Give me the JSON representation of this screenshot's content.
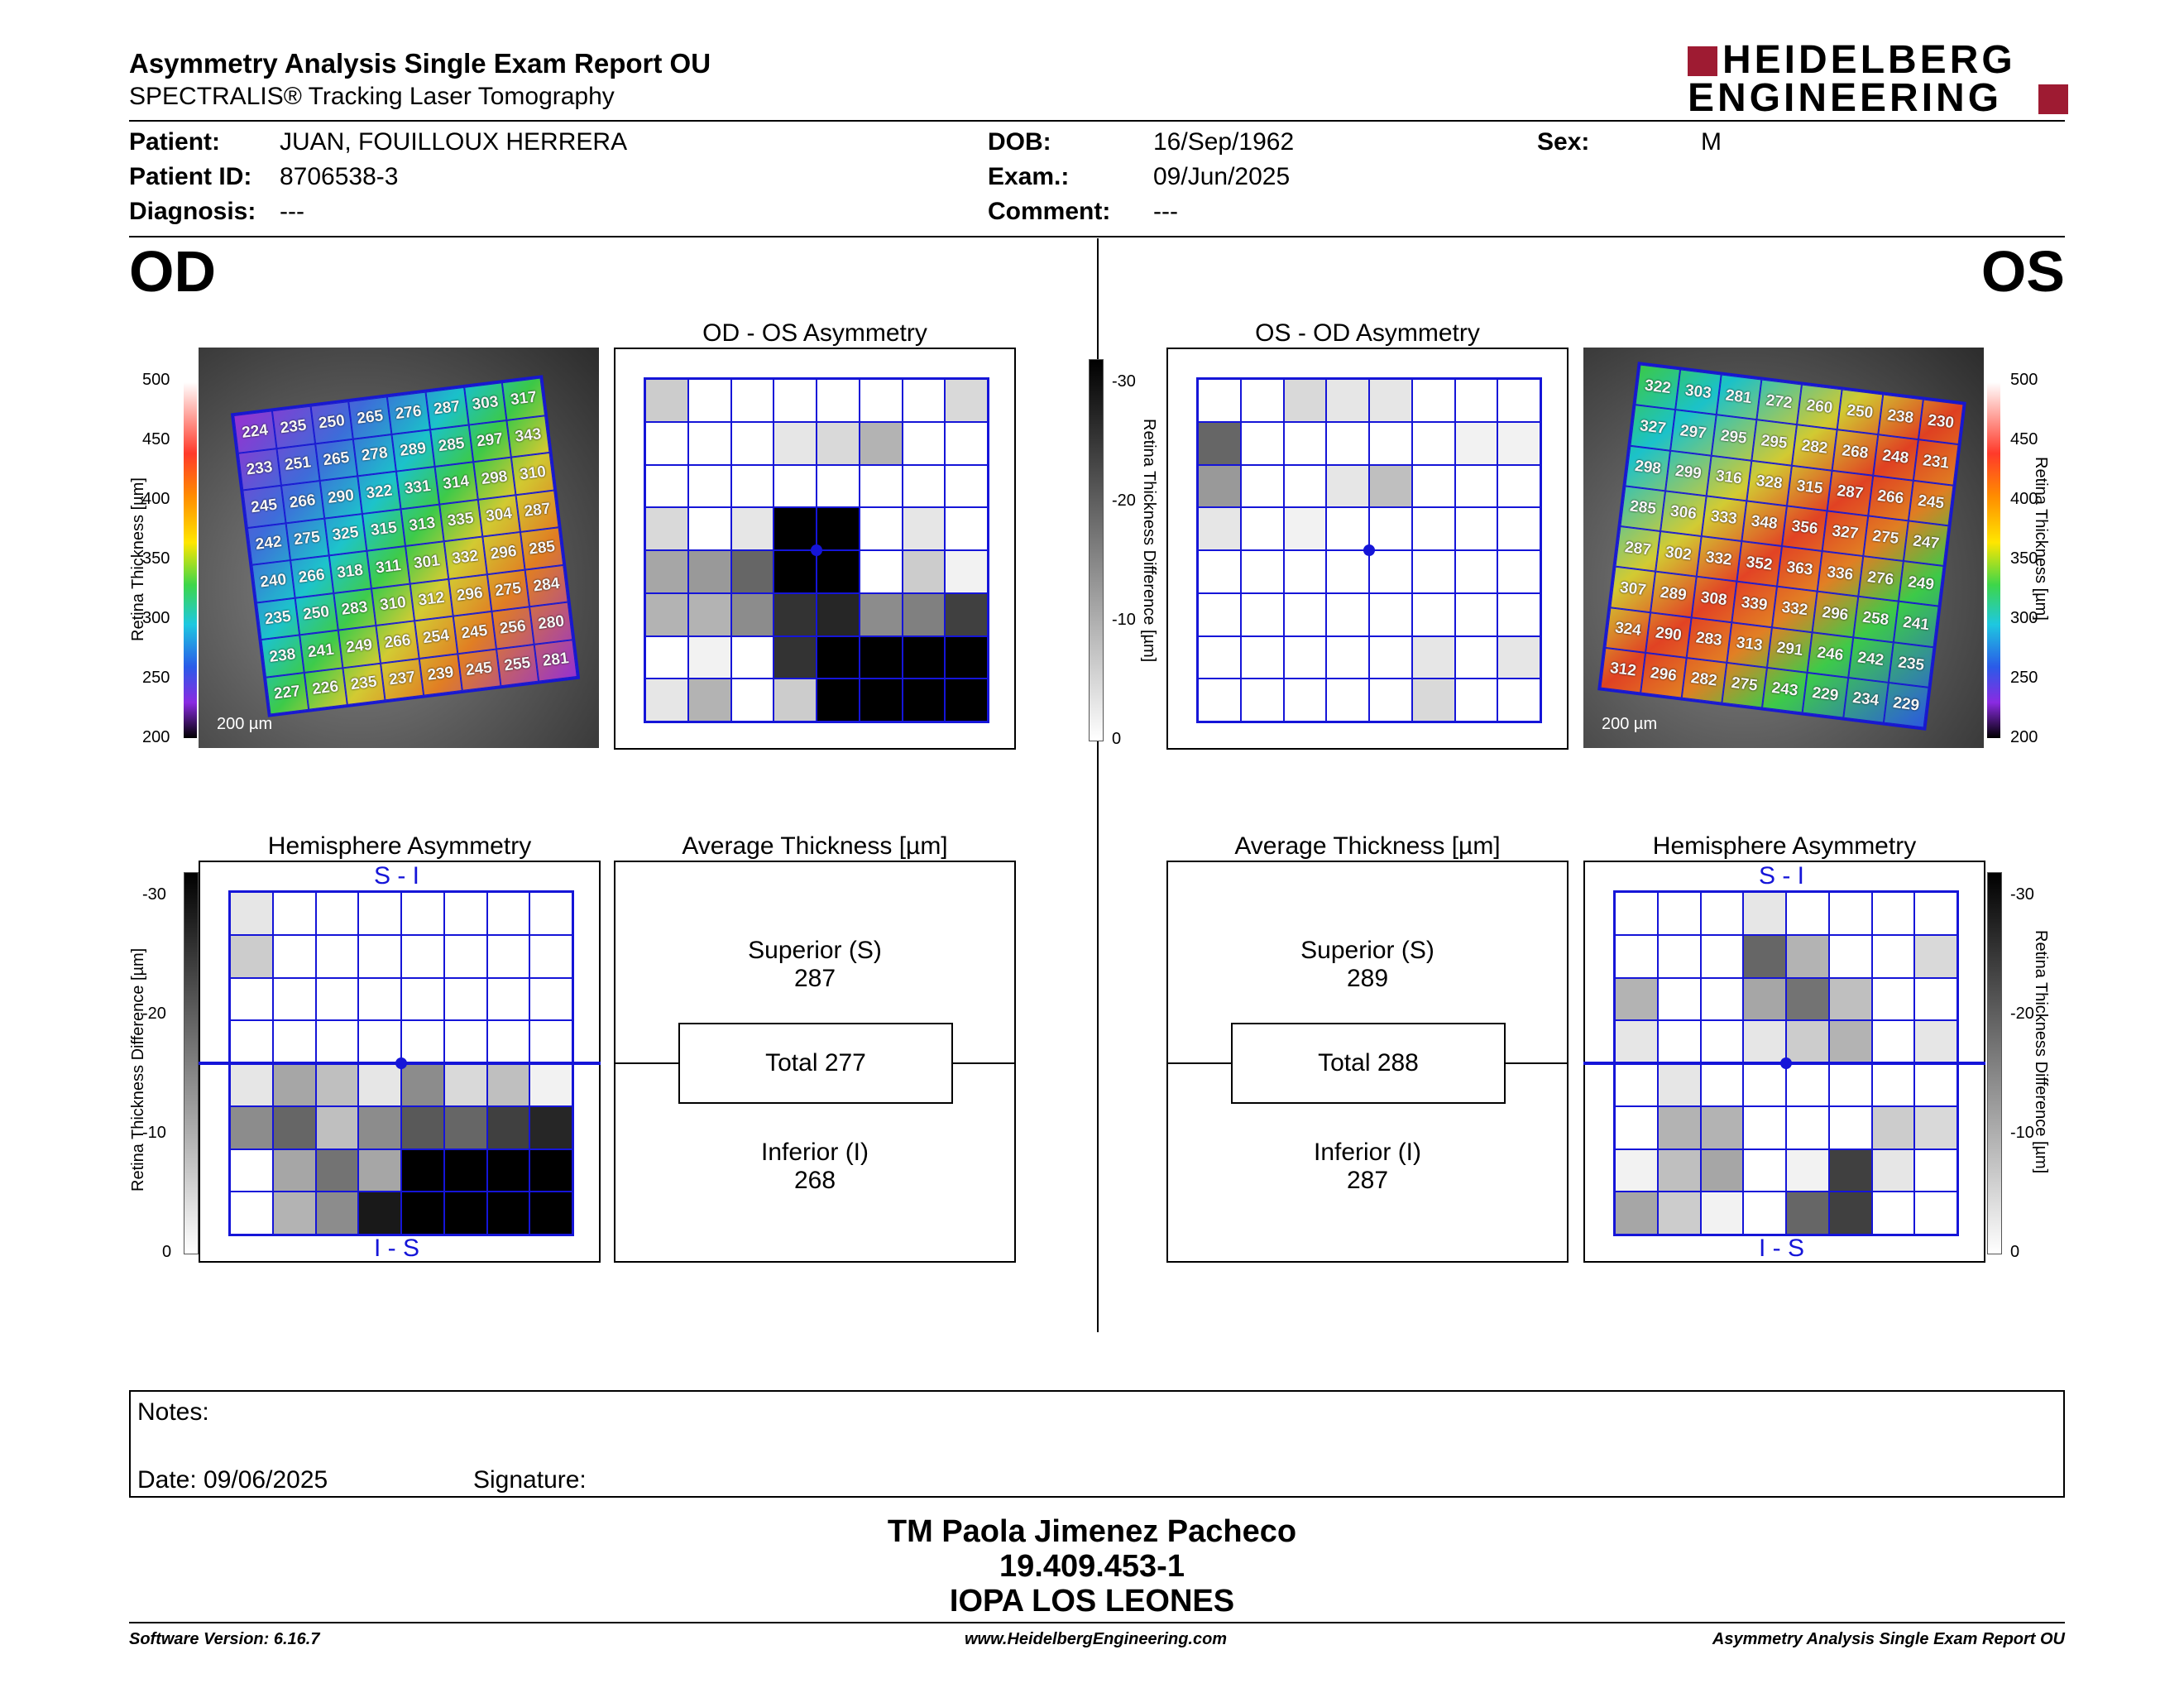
{
  "header": {
    "title": "Asymmetry Analysis Single Exam Report OU",
    "subtitle": "SPECTRALIS® Tracking Laser Tomography",
    "logo_line1": "HEIDELBERG",
    "logo_line2": "ENGINEERING"
  },
  "patient": {
    "patient_label": "Patient:",
    "patient_value": "JUAN, FOUILLOUX HERRERA",
    "id_label": "Patient ID:",
    "id_value": "8706538-3",
    "diag_label": "Diagnosis:",
    "diag_value": "---",
    "dob_label": "DOB:",
    "dob_value": "16/Sep/1962",
    "exam_label": "Exam.:",
    "exam_value": "09/Jun/2025",
    "comment_label": "Comment:",
    "comment_value": "---",
    "sex_label": "Sex:",
    "sex_value": "M"
  },
  "eyes": {
    "od": "OD",
    "os": "OS"
  },
  "titles": {
    "od_os": "OD - OS Asymmetry",
    "os_od": "OS - OD Asymmetry",
    "hemi": "Hemisphere Asymmetry",
    "avg": "Average Thickness [µm]"
  },
  "scales": {
    "thick_ticks": [
      "500",
      "450",
      "400",
      "350",
      "300",
      "250",
      "200"
    ],
    "thick_label": "Retina Thickness [µm]",
    "diff_ticks": [
      "-30",
      "-20",
      "-10",
      "0"
    ],
    "diff_label": "Retina Thickness Difference [µm]",
    "scalebar": "200 µm"
  },
  "hemi_labels": {
    "top": "S - I",
    "bottom": "I - S"
  },
  "od_thickness": [
    [
      "224",
      "235",
      "250",
      "265",
      "276",
      "287",
      "303",
      "317"
    ],
    [
      "233",
      "251",
      "265",
      "278",
      "289",
      "285",
      "297",
      "343"
    ],
    [
      "245",
      "266",
      "290",
      "322",
      "331",
      "314",
      "298",
      "310"
    ],
    [
      "242",
      "275",
      "325",
      "315",
      "313",
      "335",
      "304",
      "287"
    ],
    [
      "240",
      "266",
      "318",
      "311",
      "301",
      "332",
      "296",
      "285"
    ],
    [
      "235",
      "250",
      "283",
      "310",
      "312",
      "296",
      "275",
      "284"
    ],
    [
      "238",
      "241",
      "249",
      "266",
      "254",
      "245",
      "256",
      "280"
    ],
    [
      "227",
      "226",
      "235",
      "237",
      "239",
      "245",
      "255",
      "281"
    ]
  ],
  "os_thickness": [
    [
      "322",
      "303",
      "281",
      "272",
      "260",
      "250",
      "238",
      "230"
    ],
    [
      "327",
      "297",
      "295",
      "295",
      "282",
      "268",
      "248",
      "231"
    ],
    [
      "298",
      "299",
      "316",
      "328",
      "315",
      "287",
      "266",
      "245"
    ],
    [
      "285",
      "306",
      "333",
      "348",
      "356",
      "327",
      "275",
      "247"
    ],
    [
      "287",
      "302",
      "332",
      "352",
      "363",
      "336",
      "276",
      "249"
    ],
    [
      "307",
      "289",
      "308",
      "339",
      "332",
      "296",
      "258",
      "241"
    ],
    [
      "324",
      "290",
      "283",
      "313",
      "291",
      "246",
      "242",
      "235"
    ],
    [
      "312",
      "296",
      "282",
      "275",
      "243",
      "229",
      "234",
      "229"
    ]
  ],
  "od_os_asym": [
    [
      0.2,
      0,
      0,
      0,
      0,
      0,
      0,
      0.15
    ],
    [
      0,
      0,
      0,
      0.1,
      0.15,
      0.3,
      0,
      0
    ],
    [
      0,
      0,
      0,
      0,
      0,
      0,
      0,
      0
    ],
    [
      0.15,
      0,
      0.1,
      1.0,
      1.0,
      0,
      0.1,
      0
    ],
    [
      0.35,
      0.4,
      0.6,
      1.0,
      1.0,
      0,
      0.2,
      0.05
    ],
    [
      0.3,
      0.3,
      0.45,
      0.8,
      0.85,
      0.45,
      0.5,
      0.75
    ],
    [
      0,
      0.05,
      0,
      0.8,
      1.0,
      1.0,
      1.0,
      1.0
    ],
    [
      0.1,
      0.3,
      0,
      0.2,
      1.0,
      1.0,
      1.0,
      1.0
    ]
  ],
  "os_od_asym": [
    [
      0,
      0,
      0.15,
      0.1,
      0.1,
      0,
      0,
      0
    ],
    [
      0.6,
      0,
      0,
      0,
      0,
      0,
      0.05,
      0.05
    ],
    [
      0.4,
      0,
      0,
      0.1,
      0.25,
      0,
      0,
      0
    ],
    [
      0.1,
      0,
      0.05,
      0,
      0,
      0,
      0,
      0
    ],
    [
      0,
      0,
      0,
      0,
      0,
      0,
      0,
      0
    ],
    [
      0,
      0,
      0,
      0,
      0,
      0,
      0,
      0
    ],
    [
      0,
      0,
      0,
      0,
      0,
      0.1,
      0,
      0.1
    ],
    [
      0,
      0,
      0,
      0,
      0,
      0.15,
      0,
      0
    ]
  ],
  "od_hemi": [
    [
      0.1,
      0,
      0,
      0,
      0,
      0,
      0,
      0
    ],
    [
      0.2,
      0,
      0,
      0,
      0,
      0,
      0,
      0
    ],
    [
      0,
      0,
      0,
      0,
      0,
      0,
      0,
      0
    ],
    [
      0,
      0,
      0,
      0,
      0,
      0,
      0,
      0
    ],
    [
      0.1,
      0.35,
      0.25,
      0.1,
      0.45,
      0.15,
      0.25,
      0.05
    ],
    [
      0.45,
      0.6,
      0.25,
      0.45,
      0.65,
      0.6,
      0.75,
      0.85
    ],
    [
      0,
      0.35,
      0.55,
      0.35,
      1.0,
      1.0,
      1.0,
      1.0
    ],
    [
      0,
      0.3,
      0.45,
      0.9,
      1.0,
      1.0,
      1.0,
      1.0
    ]
  ],
  "os_hemi": [
    [
      0,
      0,
      0,
      0.1,
      0,
      0,
      0,
      0
    ],
    [
      0,
      0,
      0,
      0.6,
      0.3,
      0,
      0,
      0.15
    ],
    [
      0.3,
      0,
      0,
      0.35,
      0.55,
      0.25,
      0,
      0
    ],
    [
      0.1,
      0,
      0,
      0.1,
      0.2,
      0.3,
      0,
      0.1
    ],
    [
      0,
      0.1,
      0,
      0,
      0,
      0,
      0,
      0
    ],
    [
      0,
      0.3,
      0.3,
      0,
      0,
      0,
      0.2,
      0.15
    ],
    [
      0.05,
      0.25,
      0.35,
      0,
      0.05,
      0.75,
      0.1,
      0
    ],
    [
      0.35,
      0.2,
      0.05,
      0,
      0.6,
      0.75,
      0,
      0
    ]
  ],
  "od_avg": {
    "sup_label": "Superior (S)",
    "sup_val": "287",
    "total": "Total 277",
    "inf_label": "Inferior (I)",
    "inf_val": "268"
  },
  "os_avg": {
    "sup_label": "Superior (S)",
    "sup_val": "289",
    "total": "Total 288",
    "inf_label": "Inferior (I)",
    "inf_val": "287"
  },
  "notes": {
    "label": "Notes:",
    "date": "Date: 09/06/2025",
    "signature": "Signature:"
  },
  "signer": {
    "name": "TM Paola Jimenez Pacheco",
    "rut": "19.409.453-1",
    "site": "IOPA LOS LEONES"
  },
  "footer": {
    "version": "Software Version: 6.16.7",
    "url": "www.HeidelbergEngineering.com",
    "report": "Asymmetry Analysis Single Exam Report OU"
  },
  "colors": {
    "grid_blue": "#1515d8",
    "logo_red": "#9e1b32"
  }
}
